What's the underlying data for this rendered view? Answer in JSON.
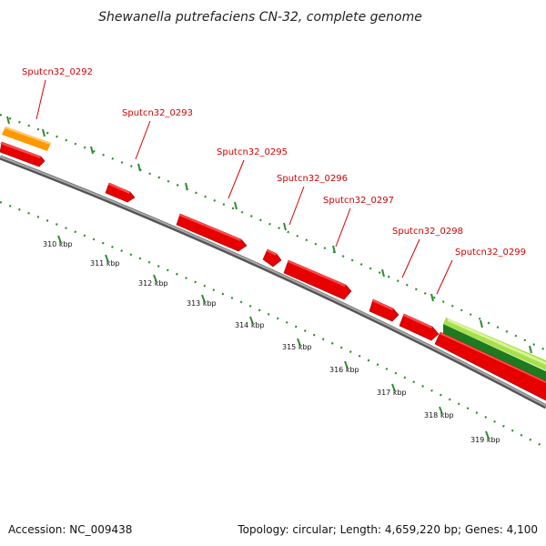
{
  "title": "Shewanella putrefaciens CN-32, complete genome",
  "footer": {
    "accession": "Accession: NC_009438",
    "summary": "Topology: circular; Length: 4,659,220 bp; Genes: 4,100"
  },
  "genes": [
    {
      "name": "Sputcn32_0292"
    },
    {
      "name": "Sputcn32_0293"
    },
    {
      "name": "Sputcn32_0295"
    },
    {
      "name": "Sputcn32_0296"
    },
    {
      "name": "Sputcn32_0297"
    },
    {
      "name": "Sputcn32_0298"
    },
    {
      "name": "Sputcn32_0299"
    }
  ],
  "ticks": [
    "310 kbp",
    "311 kbp",
    "312 kbp",
    "313 kbp",
    "314 kbp",
    "315 kbp",
    "316 kbp",
    "317 kbp",
    "318 kbp",
    "319 kbp"
  ],
  "colors": {
    "gene": "#e60000",
    "gene_top": "#ff4a4a",
    "gene_side": "#a00000",
    "highlight": "#ff9900",
    "backbone": "#8a8a8a",
    "tick": "#2e8b2e",
    "label": "#d40000",
    "feature_light": "#a8e04a",
    "feature_dark": "#2e8b2e"
  }
}
